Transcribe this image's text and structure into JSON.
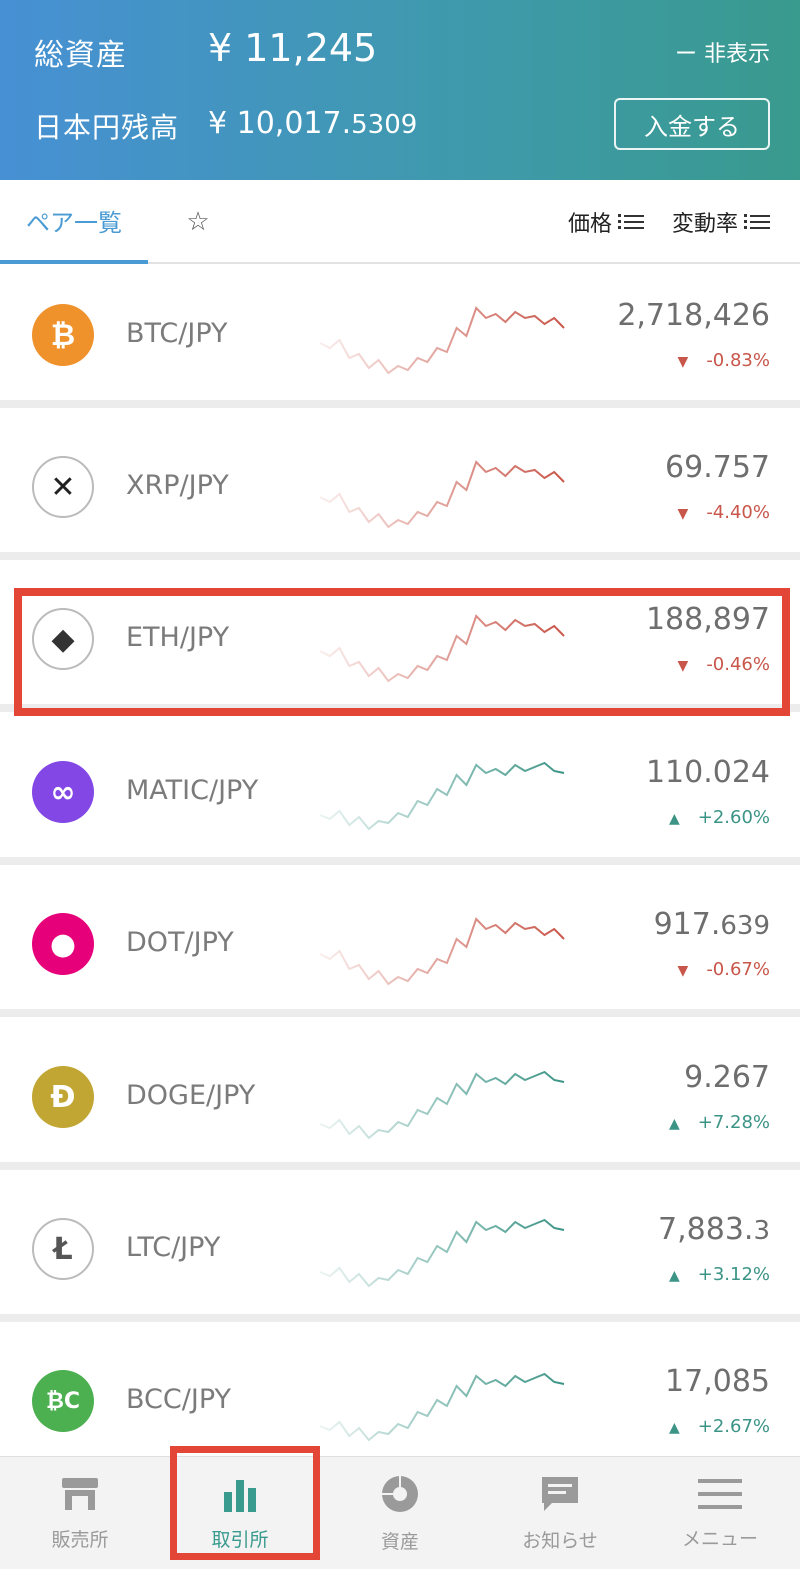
{
  "header": {
    "total_assets_label": "総資産",
    "total_assets_value": "¥ 11,245",
    "hide_label": "ー 非表示",
    "jpy_balance_label": "日本円残高",
    "jpy_balance_main": "¥ 10,017.",
    "jpy_balance_small": "5309",
    "deposit_label": "入金する"
  },
  "tabs": {
    "pairs_label": "ペア一覧",
    "favorites_icon": "☆",
    "sort_price_label": "価格",
    "sort_change_label": "変動率"
  },
  "colors": {
    "up": "#3b9486",
    "down": "#c9564a",
    "highlight": "#e34636"
  },
  "pairs": [
    {
      "name": "BTC/JPY",
      "price_main": "2,718,426",
      "price_small": "",
      "change": "-0.83%",
      "direction": "down",
      "icon": "bitcoin-icon",
      "icon_glyph": "₿",
      "icon_bg": "#f0922b",
      "icon_fg": "#ffffff"
    },
    {
      "name": "XRP/JPY",
      "price_main": "69.757",
      "price_small": "",
      "change": "-4.40%",
      "direction": "down",
      "icon": "xrp-icon",
      "icon_glyph": "✕",
      "icon_bg": "#ffffff",
      "icon_fg": "#222222"
    },
    {
      "name": "ETH/JPY",
      "price_main": "188,897",
      "price_small": "",
      "change": "-0.46%",
      "direction": "down",
      "icon": "ethereum-icon",
      "icon_glyph": "◆",
      "icon_bg": "#ffffff",
      "icon_fg": "#333333"
    },
    {
      "name": "MATIC/JPY",
      "price_main": "110.024",
      "price_small": "",
      "change": "+2.60%",
      "direction": "up",
      "icon": "polygon-icon",
      "icon_glyph": "∞",
      "icon_bg": "#8247e5",
      "icon_fg": "#ffffff"
    },
    {
      "name": "DOT/JPY",
      "price_main": "917.",
      "price_small": "639",
      "change": "-0.67%",
      "direction": "down",
      "icon": "polkadot-icon",
      "icon_glyph": "●",
      "icon_bg": "#e6007a",
      "icon_fg": "#ffffff"
    },
    {
      "name": "DOGE/JPY",
      "price_main": "9.267",
      "price_small": "",
      "change": "+7.28%",
      "direction": "up",
      "icon": "dogecoin-icon",
      "icon_glyph": "Ð",
      "icon_bg": "#c2a633",
      "icon_fg": "#ffffff"
    },
    {
      "name": "LTC/JPY",
      "price_main": "7,883.",
      "price_small": "3",
      "change": "+3.12%",
      "direction": "up",
      "icon": "litecoin-icon",
      "icon_glyph": "Ł",
      "icon_bg": "#ffffff",
      "icon_fg": "#555555"
    },
    {
      "name": "BCC/JPY",
      "price_main": "17,085",
      "price_small": "",
      "change": "+2.67%",
      "direction": "up",
      "icon": "bitcoin-cash-icon",
      "icon_glyph": "₿C",
      "icon_bg": "#4caf50",
      "icon_fg": "#ffffff"
    }
  ],
  "bottom_nav": [
    {
      "label": "販売所",
      "icon": "shop-icon",
      "active": false
    },
    {
      "label": "取引所",
      "icon": "bar-chart-icon",
      "active": true
    },
    {
      "label": "資産",
      "icon": "pie-chart-icon",
      "active": false
    },
    {
      "label": "お知らせ",
      "icon": "message-icon",
      "active": false
    },
    {
      "label": "メニュー",
      "icon": "menu-icon",
      "active": false
    }
  ]
}
